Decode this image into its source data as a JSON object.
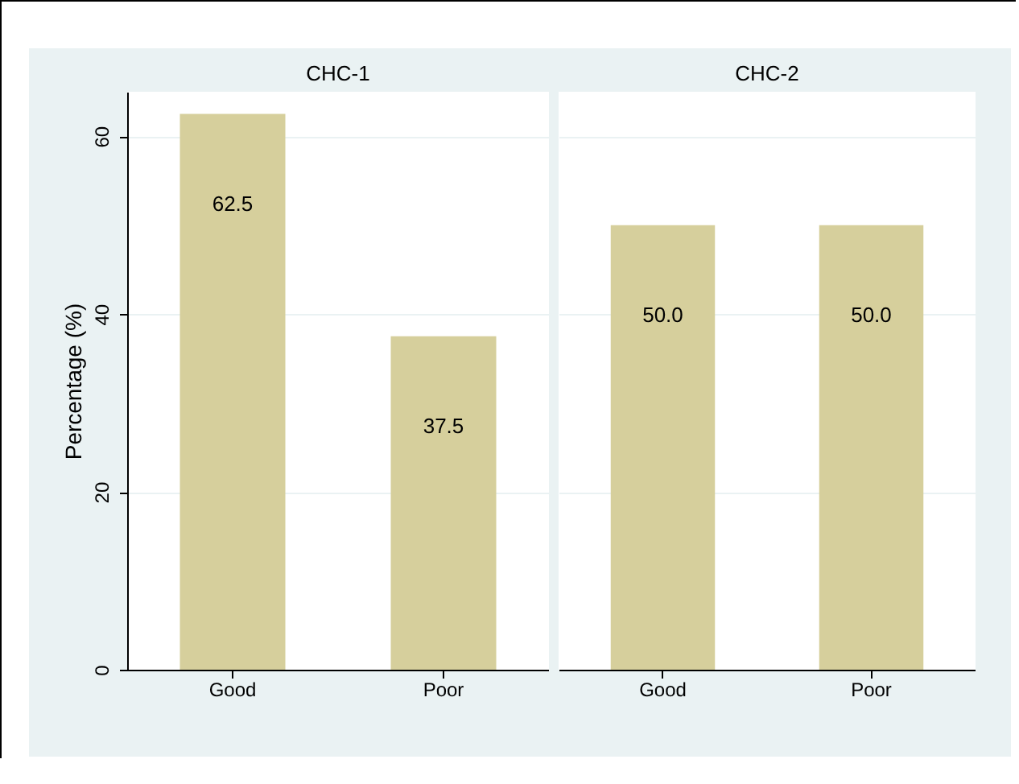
{
  "chart_data": [
    {
      "type": "bar",
      "title": "CHC-1",
      "ylabel": "Percentage (%)",
      "categories": [
        "Good",
        "Poor"
      ],
      "values": [
        62.5,
        37.5
      ],
      "value_labels": [
        "62.5",
        "37.5"
      ],
      "color": "#d6cf9c",
      "ylim": [
        0,
        65
      ],
      "yticks": [
        0,
        20,
        40,
        60
      ],
      "grid": "y"
    },
    {
      "type": "bar",
      "title": "CHC-2",
      "categories": [
        "Good",
        "Poor"
      ],
      "values": [
        50.0,
        50.0
      ],
      "value_labels": [
        "50.0",
        "50.0"
      ],
      "color": "#d6cf9c",
      "ylim": [
        0,
        65
      ],
      "yticks": [
        0,
        20,
        40,
        60
      ],
      "grid": "y",
      "tick_labels": "x"
    }
  ]
}
